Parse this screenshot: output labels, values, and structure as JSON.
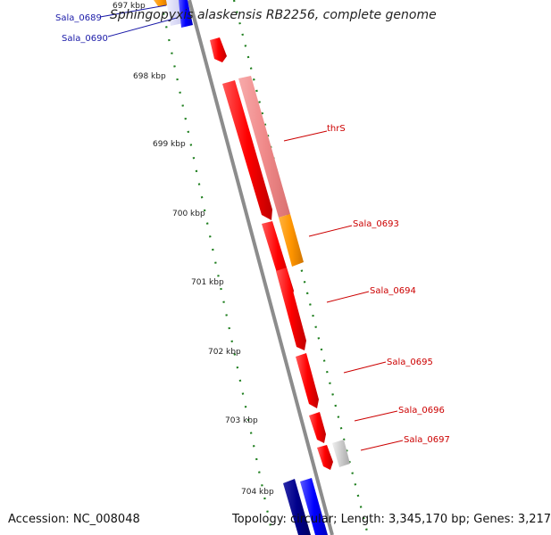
{
  "title": "Sphingopyxis alaskensis RB2256, complete genome",
  "accession": "Accession: NC_008048",
  "summary": "Topology: circular; Length: 3,345,170 bp; Genes: 3,217",
  "colors": {
    "backbone": "#8c8c8c",
    "tick": "#1f7f1f",
    "reverse_gene": "#ff0000",
    "forward_gene": "#0000ff",
    "label_red": "#cc0000",
    "label_blue": "#1a1aa8"
  },
  "kbp_labels": [
    {
      "text": "697 kbp",
      "kbp": 697
    },
    {
      "text": "698 kbp",
      "kbp": 698
    },
    {
      "text": "699 kbp",
      "kbp": 699
    },
    {
      "text": "700 kbp",
      "kbp": 700
    },
    {
      "text": "701 kbp",
      "kbp": 701
    },
    {
      "text": "702 kbp",
      "kbp": 702
    },
    {
      "text": "703 kbp",
      "kbp": 703
    },
    {
      "text": "704 kbp",
      "kbp": 704
    }
  ],
  "gene_labels": [
    {
      "text": "Sala_0689",
      "color": "blue"
    },
    {
      "text": "Sala_0690",
      "color": "blue"
    },
    {
      "text": "thrS",
      "color": "red"
    },
    {
      "text": "Sala_0693",
      "color": "red"
    },
    {
      "text": "Sala_0694",
      "color": "red"
    },
    {
      "text": "Sala_0695",
      "color": "red"
    },
    {
      "text": "Sala_0696",
      "color": "red"
    },
    {
      "text": "Sala_0697",
      "color": "red"
    }
  ]
}
